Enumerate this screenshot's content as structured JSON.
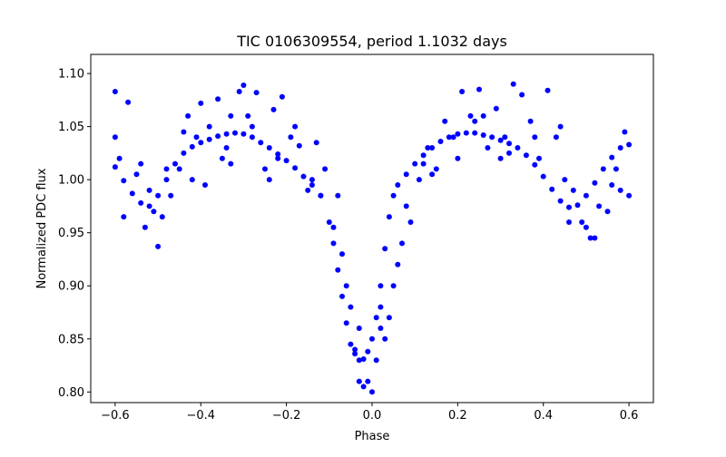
{
  "chart_data": {
    "type": "scatter",
    "title": "TIC 0106309554, period 1.1032 days",
    "xlabel": "Phase",
    "ylabel": "Normalized PDC flux",
    "xlim": [
      -0.657,
      0.657
    ],
    "ylim": [
      0.79,
      1.118
    ],
    "grid": false,
    "legend": "none",
    "x_ticks": [
      {
        "value": -0.6,
        "label": "−0.6"
      },
      {
        "value": -0.4,
        "label": "−0.4"
      },
      {
        "value": -0.2,
        "label": "−0.2"
      },
      {
        "value": 0.0,
        "label": "0.0"
      },
      {
        "value": 0.2,
        "label": "0.2"
      },
      {
        "value": 0.4,
        "label": "0.4"
      },
      {
        "value": 0.6,
        "label": "0.6"
      }
    ],
    "y_ticks": [
      {
        "value": 0.8,
        "label": "0.80"
      },
      {
        "value": 0.85,
        "label": "0.85"
      },
      {
        "value": 0.9,
        "label": "0.90"
      },
      {
        "value": 0.95,
        "label": "0.95"
      },
      {
        "value": 1.0,
        "label": "1.00"
      },
      {
        "value": 1.05,
        "label": "1.05"
      },
      {
        "value": 1.1,
        "label": "1.10"
      }
    ],
    "marker_color": "#0000ff",
    "series": [
      {
        "x": [
          -0.6,
          -0.58,
          -0.56,
          -0.54,
          -0.52,
          -0.5,
          -0.48,
          -0.46,
          -0.44,
          -0.42,
          -0.4,
          -0.38,
          -0.36,
          -0.34,
          -0.32,
          -0.3,
          -0.28,
          -0.26,
          -0.24,
          -0.22,
          -0.2,
          -0.18,
          -0.16,
          -0.14,
          -0.12,
          -0.1,
          -0.09,
          -0.08,
          -0.07,
          -0.06,
          -0.05,
          -0.04,
          -0.03,
          -0.02,
          -0.01,
          0.0,
          0.01,
          0.02,
          0.03,
          0.04,
          0.05,
          0.06,
          0.08,
          0.1,
          0.12,
          0.14,
          0.16,
          0.18,
          0.2,
          0.22,
          0.24,
          0.26,
          0.28,
          0.3,
          0.32,
          0.34,
          0.36,
          0.38,
          0.4,
          0.42,
          0.44,
          0.46,
          0.48,
          0.5,
          0.52,
          0.54,
          0.56,
          0.58,
          0.6
        ],
        "y": [
          1.012,
          0.999,
          0.987,
          0.978,
          0.975,
          0.985,
          1.0,
          1.015,
          1.025,
          1.031,
          1.035,
          1.038,
          1.041,
          1.043,
          1.044,
          1.043,
          1.04,
          1.035,
          1.03,
          1.024,
          1.018,
          1.011,
          1.003,
          0.995,
          0.985,
          0.96,
          0.94,
          0.915,
          0.89,
          0.865,
          0.845,
          0.836,
          0.83,
          0.831,
          0.838,
          0.85,
          0.87,
          0.9,
          0.935,
          0.965,
          0.985,
          0.995,
          1.005,
          1.015,
          1.023,
          1.03,
          1.036,
          1.04,
          1.043,
          1.044,
          1.044,
          1.042,
          1.04,
          1.037,
          1.034,
          1.03,
          1.023,
          1.014,
          1.003,
          0.991,
          0.98,
          0.974,
          0.976,
          0.985,
          0.997,
          1.01,
          1.021,
          1.03,
          1.033
        ]
      },
      {
        "x": [
          -0.6,
          -0.59,
          -0.57,
          -0.55,
          -0.53,
          -0.52,
          -0.5,
          -0.49,
          -0.47,
          -0.45,
          -0.43,
          -0.41,
          -0.4,
          -0.38,
          -0.36,
          -0.35,
          -0.33,
          -0.31,
          -0.3,
          -0.28,
          -0.27,
          -0.25,
          -0.23,
          -0.21,
          -0.19,
          -0.17,
          -0.15,
          -0.13,
          -0.11,
          -0.09,
          -0.08,
          -0.06,
          -0.05,
          -0.04,
          -0.03,
          -0.02,
          -0.01,
          0.0,
          0.01,
          0.02,
          0.03,
          0.04,
          0.05,
          0.06,
          0.07,
          0.09,
          0.11,
          0.13,
          0.15,
          0.17,
          0.19,
          0.21,
          0.23,
          0.25,
          0.27,
          0.29,
          0.31,
          0.33,
          0.35,
          0.37,
          0.39,
          0.41,
          0.43,
          0.45,
          0.47,
          0.49,
          0.51,
          0.53,
          0.55,
          0.57,
          0.59,
          0.6,
          -0.58,
          -0.54,
          -0.48,
          -0.44,
          -0.39,
          -0.34,
          -0.29,
          -0.24,
          -0.18,
          -0.12,
          -0.07,
          -0.03,
          0.02,
          0.08,
          0.14,
          0.2,
          0.26,
          0.32,
          0.38,
          0.44,
          0.5,
          0.56,
          -0.6,
          -0.51,
          -0.42,
          -0.33,
          -0.22,
          -0.14,
          0.12,
          0.24,
          0.3,
          0.46,
          0.52,
          0.58
        ],
        "y": [
          1.083,
          1.02,
          1.073,
          1.005,
          0.955,
          0.99,
          0.937,
          0.965,
          0.985,
          1.01,
          1.06,
          1.04,
          1.072,
          1.05,
          1.076,
          1.02,
          1.06,
          1.083,
          1.089,
          1.05,
          1.082,
          1.01,
          1.066,
          1.078,
          1.04,
          1.032,
          0.99,
          1.035,
          1.01,
          0.955,
          0.985,
          0.9,
          0.88,
          0.84,
          0.81,
          0.805,
          0.81,
          0.8,
          0.83,
          0.86,
          0.85,
          0.87,
          0.9,
          0.92,
          0.94,
          0.96,
          1.0,
          1.03,
          1.01,
          1.055,
          1.04,
          1.083,
          1.06,
          1.085,
          1.03,
          1.067,
          1.04,
          1.09,
          1.08,
          1.055,
          1.02,
          1.084,
          1.04,
          1.0,
          0.99,
          0.96,
          0.945,
          0.975,
          0.97,
          1.01,
          1.045,
          0.985,
          0.965,
          1.015,
          1.01,
          1.045,
          0.995,
          1.03,
          1.06,
          1.0,
          1.05,
          0.985,
          0.93,
          0.86,
          0.88,
          0.975,
          1.005,
          1.02,
          1.06,
          1.025,
          1.04,
          1.05,
          0.955,
          0.995,
          1.04,
          0.97,
          1.0,
          1.015,
          1.02,
          1.0,
          1.015,
          1.055,
          1.02,
          0.96,
          0.945,
          0.99
        ]
      }
    ]
  }
}
